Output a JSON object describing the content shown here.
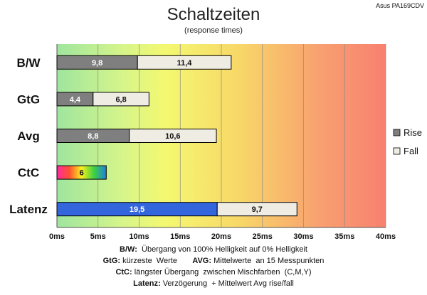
{
  "chart_data": {
    "type": "bar",
    "orientation": "horizontal",
    "stacked": true,
    "title": "Schaltzeiten",
    "subtitle": "(response times)",
    "brand": "Asus PA169CDV",
    "categories": [
      "B/W",
      "GtG",
      "Avg",
      "CtC",
      "Latenz"
    ],
    "x_ticks": [
      "0ms",
      "5ms",
      "10ms",
      "15ms",
      "20ms",
      "25ms",
      "30ms",
      "35ms",
      "40ms"
    ],
    "xlim": [
      0,
      40
    ],
    "grid": true,
    "legend_position": "right",
    "legend": [
      "Rise",
      "Fall"
    ],
    "series": [
      {
        "name": "Rise",
        "values": [
          9.8,
          4.4,
          8.8,
          6.0,
          19.5
        ],
        "labels": [
          "9,8",
          "4,4",
          "8,8",
          "6",
          "19,5"
        ]
      },
      {
        "name": "Fall",
        "values": [
          11.4,
          6.8,
          10.6,
          0,
          9.7
        ],
        "labels": [
          "11,4",
          "6,8",
          "10,6",
          "",
          "9,7"
        ]
      }
    ],
    "colors": {
      "rise": "#7f7f7f",
      "fall": "#efece4",
      "latency_rise": "#3366dd",
      "background_gradient": [
        "#a6e8a0",
        "#e8f870",
        "#f8d060",
        "#f89070"
      ]
    }
  },
  "notes": [
    {
      "parts": [
        {
          "b": "B/W:"
        },
        {
          "t": "  Übergang von 100% Helligkeit auf 0% Helligkeit"
        }
      ]
    },
    {
      "parts": [
        {
          "b": "GtG:"
        },
        {
          "t": " kürzeste  Werte       "
        },
        {
          "b": "AVG:"
        },
        {
          "t": " Mittelwerte  an 15 Messpunkten"
        }
      ]
    },
    {
      "parts": [
        {
          "b": "CtC:"
        },
        {
          "t": " längster Übergang  zwischen Mischfarben  (C,M,Y)"
        }
      ]
    },
    {
      "parts": [
        {
          "b": "Latenz:"
        },
        {
          "t": " Verzögerung  + Mittelwert Avg rise/fall"
        }
      ]
    }
  ]
}
